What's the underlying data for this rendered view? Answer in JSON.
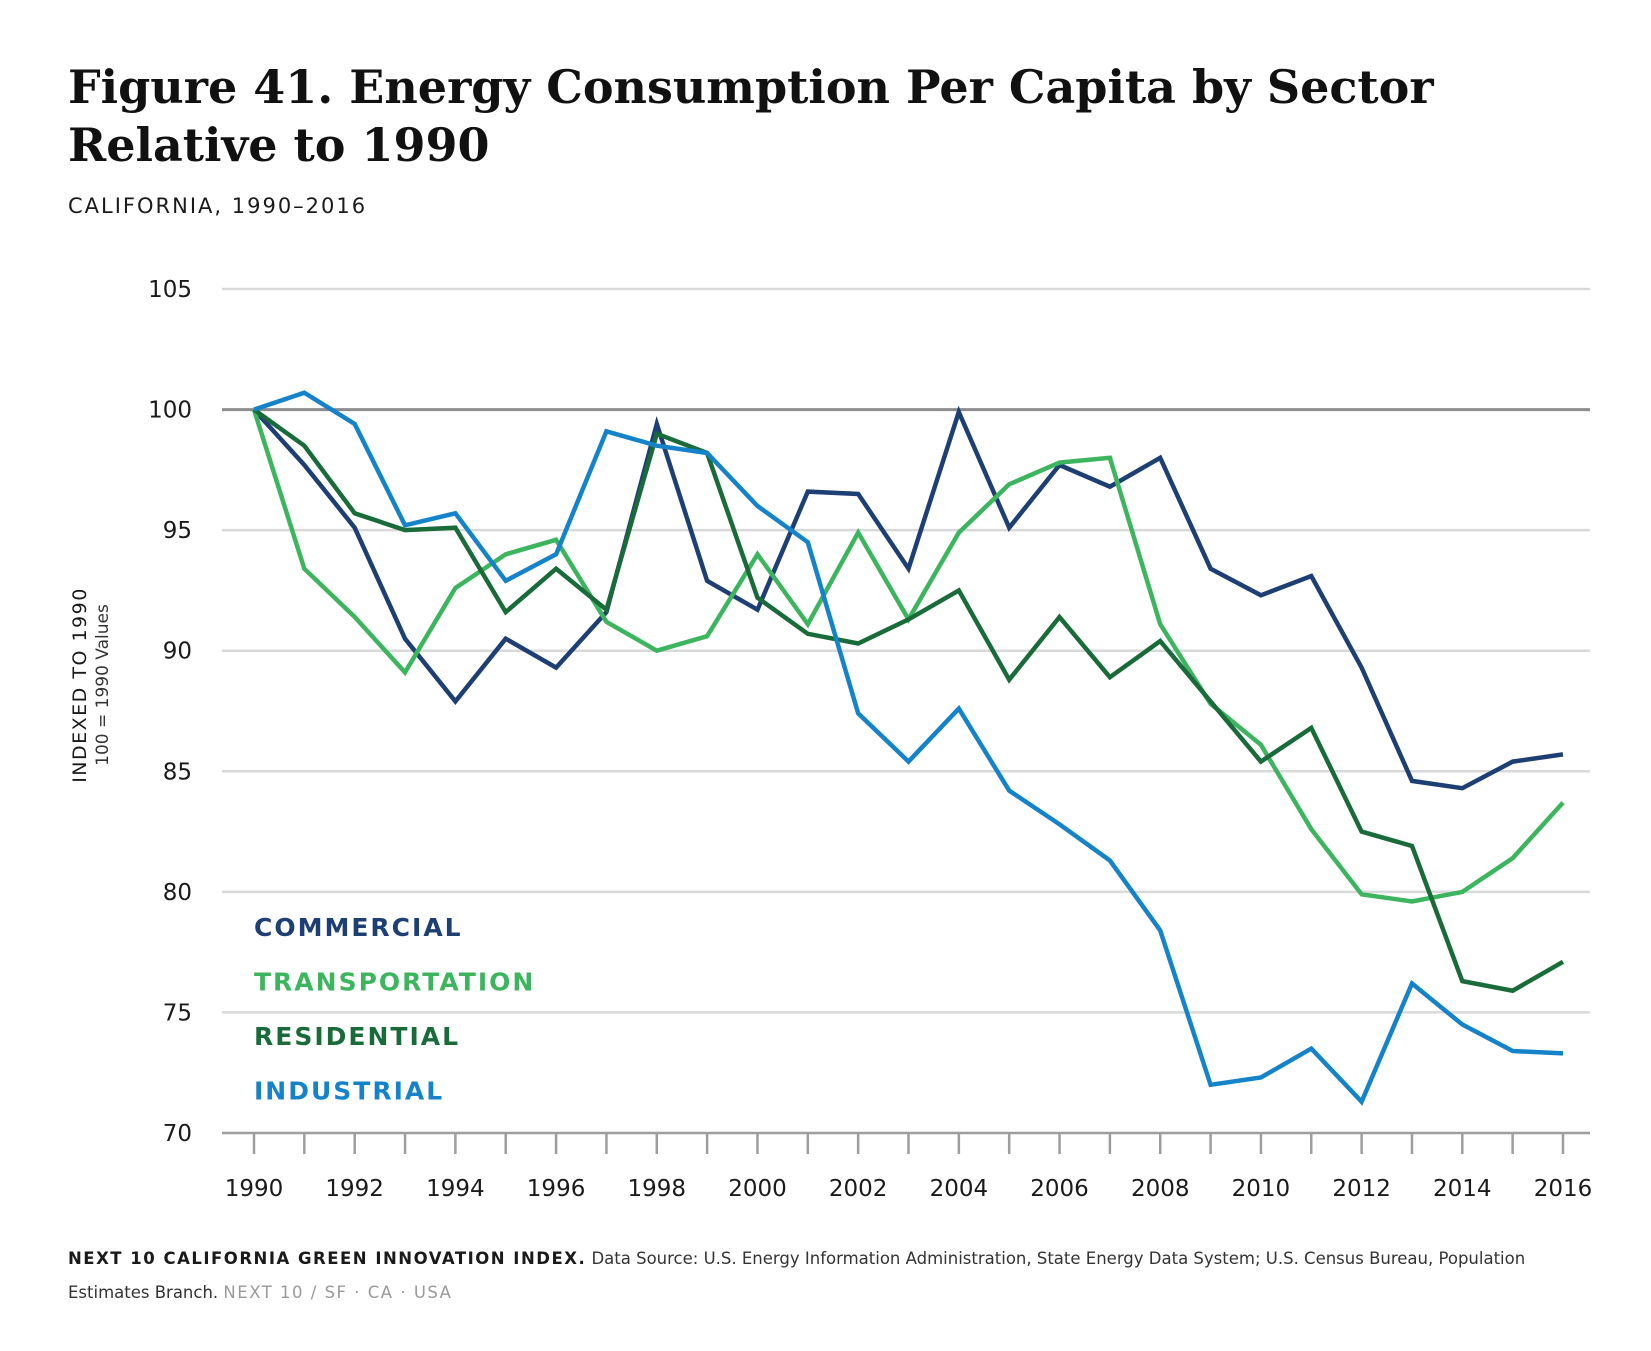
{
  "header": {
    "title": "Figure 41. Energy Consumption Per Capita by Sector Relative to 1990",
    "subtitle": "CALIFORNIA, 1990–2016"
  },
  "footer": {
    "brand": "NEXT 10 CALIFORNIA GREEN INNOVATION INDEX.",
    "source": "Data Source: U.S. Energy Information Administration, State Energy Data System; U.S. Census Bureau, Population Estimates Branch.",
    "tail": "NEXT 10  /  SF · CA · USA"
  },
  "chart_data": {
    "type": "line",
    "ylabel": "INDEXED TO 1990",
    "ylabel_sub": "100 = 1990 Values",
    "ylim": [
      70,
      105
    ],
    "yticks": [
      70,
      75,
      80,
      85,
      90,
      95,
      100,
      105
    ],
    "xlim": [
      1990,
      2016
    ],
    "xtick_labels": [
      1990,
      1992,
      1994,
      1996,
      1998,
      2000,
      2002,
      2004,
      2006,
      2008,
      2010,
      2012,
      2014,
      2016
    ],
    "reference_line": 100,
    "grid": true,
    "legend_position": "bottom-left",
    "x": [
      1990,
      1991,
      1992,
      1993,
      1994,
      1995,
      1996,
      1997,
      1998,
      1999,
      2000,
      2001,
      2002,
      2003,
      2004,
      2005,
      2006,
      2007,
      2008,
      2009,
      2010,
      2011,
      2012,
      2013,
      2014,
      2015,
      2016
    ],
    "series": [
      {
        "name": "COMMERCIAL",
        "color": "#1e3f73",
        "values": [
          100,
          97.7,
          95.1,
          90.5,
          87.9,
          90.5,
          89.3,
          91.6,
          99.4,
          92.9,
          91.7,
          96.6,
          96.5,
          93.4,
          99.9,
          95.1,
          97.7,
          96.8,
          98.0,
          93.4,
          92.3,
          93.1,
          89.3,
          84.6,
          84.3,
          85.4,
          85.7
        ]
      },
      {
        "name": "TRANSPORTATION",
        "color": "#3db55e",
        "values": [
          100,
          93.4,
          91.4,
          89.1,
          92.6,
          94.0,
          94.6,
          91.2,
          90.0,
          90.6,
          94.0,
          91.1,
          94.9,
          91.3,
          94.9,
          96.9,
          97.8,
          98.0,
          91.1,
          87.8,
          86.1,
          82.6,
          79.9,
          79.6,
          80.0,
          81.4,
          83.7
        ]
      },
      {
        "name": "RESIDENTIAL",
        "color": "#1a6b3a",
        "values": [
          100,
          98.5,
          95.7,
          95.0,
          95.1,
          91.6,
          93.4,
          91.7,
          99.0,
          98.2,
          92.2,
          90.7,
          90.3,
          91.3,
          92.5,
          88.8,
          91.4,
          88.9,
          90.4,
          87.9,
          85.4,
          86.8,
          82.5,
          81.9,
          76.3,
          75.9,
          77.1
        ]
      },
      {
        "name": "INDUSTRIAL",
        "color": "#1483c9",
        "values": [
          100,
          100.7,
          99.4,
          95.2,
          95.7,
          92.9,
          94.0,
          99.1,
          98.5,
          98.2,
          96.0,
          94.5,
          87.4,
          85.4,
          87.6,
          84.2,
          82.8,
          81.3,
          78.4,
          72.0,
          72.3,
          73.5,
          71.3,
          76.2,
          74.5,
          73.4,
          73.3
        ]
      }
    ]
  }
}
